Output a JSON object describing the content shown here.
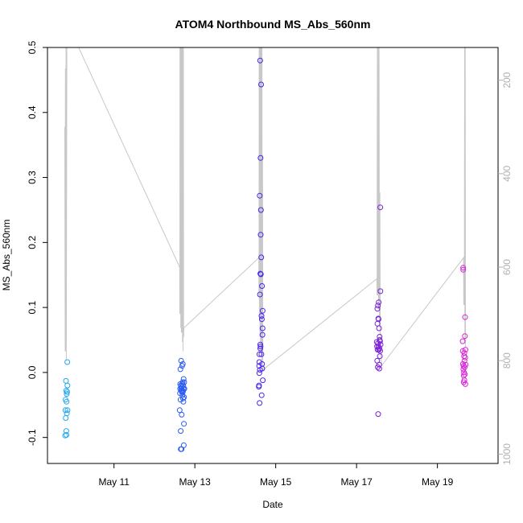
{
  "chart_data": {
    "type": "scatter",
    "title": "ATOM4 Northbound MS_Abs_560nm",
    "xlabel": "Date",
    "ylabel": "MS_Abs_560nm",
    "xlim": [
      "2016-05-09 08:30",
      "2016-05-20 12:00"
    ],
    "ylim": [
      -0.14,
      0.5
    ],
    "x_ticks": [
      "May 11",
      "May 13",
      "May 15",
      "May 17",
      "May 19"
    ],
    "y_ticks": [
      "-0.1",
      "0.0",
      "0.1",
      "0.2",
      "0.3",
      "0.4",
      "0.5"
    ],
    "y2_ticks": [
      "200",
      "400",
      "600",
      "800",
      "1000"
    ],
    "y2lim": [
      1020,
      130
    ],
    "grid": false,
    "point_colors": [
      "#22a7f0",
      "#2b5bf0",
      "#4b22ee",
      "#7a22d6",
      "#d822d8"
    ],
    "line_color": "#c8c8c8",
    "series": [
      {
        "values": [
          {
            "x": "2016-05-09 19:00",
            "y": -0.097
          },
          {
            "x": "2016-05-09 19:10",
            "y": -0.058
          },
          {
            "x": "2016-05-09 19:15",
            "y": -0.042
          },
          {
            "x": "2016-05-09 19:20",
            "y": -0.07
          },
          {
            "x": "2016-05-09 19:30",
            "y": -0.013
          },
          {
            "x": "2016-05-09 19:35",
            "y": -0.028
          },
          {
            "x": "2016-05-09 19:40",
            "y": -0.09
          },
          {
            "x": "2016-05-09 19:45",
            "y": -0.096
          },
          {
            "x": "2016-05-09 19:50",
            "y": -0.045
          },
          {
            "x": "2016-05-09 19:55",
            "y": -0.033
          },
          {
            "x": "2016-05-09 20:00",
            "y": -0.063
          },
          {
            "x": "2016-05-09 20:10",
            "y": -0.03
          },
          {
            "x": "2016-05-09 20:15",
            "y": 0.016
          },
          {
            "x": "2016-05-09 20:20",
            "y": -0.02
          },
          {
            "x": "2016-05-09 20:25",
            "y": -0.058
          }
        ]
      },
      {
        "values": [
          {
            "x": "2016-05-12 15:00",
            "y": -0.058
          },
          {
            "x": "2016-05-12 15:10",
            "y": -0.032
          },
          {
            "x": "2016-05-12 15:15",
            "y": -0.025
          },
          {
            "x": "2016-05-12 15:20",
            "y": -0.018
          },
          {
            "x": "2016-05-12 15:25",
            "y": 0.005
          },
          {
            "x": "2016-05-12 15:30",
            "y": -0.042
          },
          {
            "x": "2016-05-12 15:35",
            "y": -0.09
          },
          {
            "x": "2016-05-12 15:40",
            "y": -0.118
          },
          {
            "x": "2016-05-12 15:45",
            "y": -0.02
          },
          {
            "x": "2016-05-12 15:50",
            "y": 0.018
          },
          {
            "x": "2016-05-12 15:55",
            "y": -0.028
          },
          {
            "x": "2016-05-12 16:00",
            "y": -0.025
          },
          {
            "x": "2016-05-12 16:05",
            "y": -0.118
          },
          {
            "x": "2016-05-12 16:10",
            "y": -0.065
          },
          {
            "x": "2016-05-12 16:15",
            "y": -0.03
          },
          {
            "x": "2016-05-12 16:20",
            "y": -0.022
          },
          {
            "x": "2016-05-12 16:25",
            "y": 0.01
          },
          {
            "x": "2016-05-12 16:30",
            "y": -0.018
          },
          {
            "x": "2016-05-12 16:35",
            "y": -0.035
          },
          {
            "x": "2016-05-12 16:40",
            "y": -0.028
          },
          {
            "x": "2016-05-12 16:45",
            "y": -0.015
          },
          {
            "x": "2016-05-12 16:50",
            "y": 0.013
          },
          {
            "x": "2016-05-12 16:55",
            "y": -0.03
          },
          {
            "x": "2016-05-12 17:00",
            "y": -0.04
          },
          {
            "x": "2016-05-12 17:05",
            "y": -0.02
          },
          {
            "x": "2016-05-12 17:10",
            "y": -0.045
          },
          {
            "x": "2016-05-12 17:15",
            "y": -0.025
          },
          {
            "x": "2016-05-12 17:20",
            "y": -0.01
          },
          {
            "x": "2016-05-12 17:25",
            "y": -0.112
          },
          {
            "x": "2016-05-12 17:30",
            "y": -0.079
          },
          {
            "x": "2016-05-12 17:35",
            "y": -0.038
          },
          {
            "x": "2016-05-12 17:40",
            "y": -0.015
          },
          {
            "x": "2016-05-12 17:45",
            "y": -0.025
          }
        ]
      },
      {
        "values": [
          {
            "x": "2016-05-14 14:00",
            "y": -0.022
          },
          {
            "x": "2016-05-14 14:10",
            "y": 0.01
          },
          {
            "x": "2016-05-14 14:15",
            "y": -0.001
          },
          {
            "x": "2016-05-14 14:20",
            "y": 0.028
          },
          {
            "x": "2016-05-14 14:25",
            "y": -0.047
          },
          {
            "x": "2016-05-14 14:30",
            "y": 0.272
          },
          {
            "x": "2016-05-14 14:35",
            "y": 0.004
          },
          {
            "x": "2016-05-14 14:40",
            "y": 0.12
          },
          {
            "x": "2016-05-14 14:45",
            "y": 0.48
          },
          {
            "x": "2016-05-14 14:50",
            "y": 0.043
          },
          {
            "x": "2016-05-14 14:55",
            "y": 0.152
          },
          {
            "x": "2016-05-14 15:00",
            "y": 0.33
          },
          {
            "x": "2016-05-14 15:05",
            "y": 0.212
          },
          {
            "x": "2016-05-14 15:10",
            "y": 0.151
          },
          {
            "x": "2016-05-14 15:15",
            "y": 0.25
          },
          {
            "x": "2016-05-14 15:20",
            "y": 0.443
          },
          {
            "x": "2016-05-14 15:25",
            "y": 0.177
          },
          {
            "x": "2016-05-14 15:30",
            "y": 0.028
          },
          {
            "x": "2016-05-14 15:35",
            "y": 0.087
          },
          {
            "x": "2016-05-14 15:40",
            "y": -0.035
          },
          {
            "x": "2016-05-14 15:45",
            "y": 0.082
          },
          {
            "x": "2016-05-14 15:50",
            "y": 0.133
          },
          {
            "x": "2016-05-14 15:55",
            "y": 0.013
          },
          {
            "x": "2016-05-14 16:00",
            "y": 0.006
          },
          {
            "x": "2016-05-14 16:05",
            "y": 0.058
          },
          {
            "x": "2016-05-14 16:10",
            "y": 0.068
          },
          {
            "x": "2016-05-14 16:15",
            "y": 0.095
          },
          {
            "x": "2016-05-14 16:20",
            "y": -0.012
          },
          {
            "x": "2016-05-14 14:50",
            "y": 0.037
          },
          {
            "x": "2016-05-14 14:15",
            "y": 0.016
          },
          {
            "x": "2016-05-14 14:05",
            "y": -0.02
          },
          {
            "x": "2016-05-14 15:00",
            "y": 0.04
          }
        ]
      },
      {
        "values": [
          {
            "x": "2016-05-17 12:00",
            "y": 0.047
          },
          {
            "x": "2016-05-17 12:10",
            "y": 0.04
          },
          {
            "x": "2016-05-17 12:15",
            "y": 0.018
          },
          {
            "x": "2016-05-17 12:20",
            "y": 0.098
          },
          {
            "x": "2016-05-17 12:25",
            "y": 0.075
          },
          {
            "x": "2016-05-17 12:30",
            "y": 0.035
          },
          {
            "x": "2016-05-17 12:35",
            "y": 0.008
          },
          {
            "x": "2016-05-17 12:40",
            "y": 0.103
          },
          {
            "x": "2016-05-17 12:45",
            "y": 0.045
          },
          {
            "x": "2016-05-17 12:50",
            "y": -0.064
          },
          {
            "x": "2016-05-17 12:55",
            "y": 0.083
          },
          {
            "x": "2016-05-17 13:00",
            "y": 0.04
          },
          {
            "x": "2016-05-17 13:05",
            "y": 0.082
          },
          {
            "x": "2016-05-17 13:10",
            "y": 0.108
          },
          {
            "x": "2016-05-17 13:15",
            "y": 0.035
          },
          {
            "x": "2016-05-17 13:20",
            "y": 0.068
          },
          {
            "x": "2016-05-17 13:25",
            "y": 0.012
          },
          {
            "x": "2016-05-17 13:30",
            "y": 0.006
          },
          {
            "x": "2016-05-17 13:35",
            "y": 0.037
          },
          {
            "x": "2016-05-17 13:40",
            "y": 0.055
          },
          {
            "x": "2016-05-17 13:45",
            "y": 0.05
          },
          {
            "x": "2016-05-17 13:50",
            "y": 0.025
          },
          {
            "x": "2016-05-17 13:55",
            "y": 0.048
          },
          {
            "x": "2016-05-17 14:00",
            "y": 0.033
          },
          {
            "x": "2016-05-17 14:05",
            "y": 0.254
          },
          {
            "x": "2016-05-17 14:10",
            "y": 0.125
          },
          {
            "x": "2016-05-17 14:15",
            "y": 0.043
          }
        ]
      },
      {
        "values": [
          {
            "x": "2016-05-19 15:00",
            "y": 0.048
          },
          {
            "x": "2016-05-19 15:05",
            "y": 0.033
          },
          {
            "x": "2016-05-19 15:10",
            "y": 0.013
          },
          {
            "x": "2016-05-19 15:15",
            "y": 0.161
          },
          {
            "x": "2016-05-19 15:20",
            "y": 0.158
          },
          {
            "x": "2016-05-19 15:25",
            "y": 0.005
          },
          {
            "x": "2016-05-19 15:30",
            "y": 0.01
          },
          {
            "x": "2016-05-19 15:35",
            "y": -0.015
          },
          {
            "x": "2016-05-19 15:40",
            "y": -0.005
          },
          {
            "x": "2016-05-19 15:45",
            "y": 0.0
          },
          {
            "x": "2016-05-19 15:50",
            "y": 0.025
          },
          {
            "x": "2016-05-19 15:55",
            "y": 0.03
          },
          {
            "x": "2016-05-19 16:00",
            "y": -0.012
          },
          {
            "x": "2016-05-19 16:05",
            "y": 0.018
          },
          {
            "x": "2016-05-19 16:10",
            "y": 0.008
          },
          {
            "x": "2016-05-19 16:15",
            "y": -0.003
          },
          {
            "x": "2016-05-19 16:20",
            "y": 0.056
          },
          {
            "x": "2016-05-19 16:25",
            "y": 0.085
          },
          {
            "x": "2016-05-19 16:30",
            "y": 0.023
          },
          {
            "x": "2016-05-19 16:35",
            "y": -0.018
          },
          {
            "x": "2016-05-19 16:40",
            "y": 0.035
          },
          {
            "x": "2016-05-19 16:45",
            "y": 0.012
          }
        ]
      }
    ],
    "line_series": {
      "y_axis": "right",
      "values": [
        {
          "x": "2016-05-09 18:45",
          "y": 300
        },
        {
          "x": "2016-05-09 19:00",
          "y": 780
        },
        {
          "x": "2016-05-09 19:10",
          "y": 175
        },
        {
          "x": "2016-05-09 19:20",
          "y": 780
        },
        {
          "x": "2016-05-09 19:30",
          "y": 130
        },
        {
          "x": "2016-05-09 19:40",
          "y": 800
        },
        {
          "x": "2016-05-09 20:00",
          "y": 130
        },
        {
          "x": "2016-05-10 03:00",
          "y": 130
        },
        {
          "x": "2016-05-12 15:00",
          "y": 600
        },
        {
          "x": "2016-05-12 15:05",
          "y": 700
        },
        {
          "x": "2016-05-12 15:10",
          "y": 130
        },
        {
          "x": "2016-05-12 15:20",
          "y": 700
        },
        {
          "x": "2016-05-12 15:30",
          "y": 130
        },
        {
          "x": "2016-05-12 15:40",
          "y": 730
        },
        {
          "x": "2016-05-12 15:50",
          "y": 130
        },
        {
          "x": "2016-05-12 16:00",
          "y": 740
        },
        {
          "x": "2016-05-12 16:10",
          "y": 130
        },
        {
          "x": "2016-05-12 16:20",
          "y": 740
        },
        {
          "x": "2016-05-12 16:30",
          "y": 130
        },
        {
          "x": "2016-05-12 16:40",
          "y": 760
        },
        {
          "x": "2016-05-12 16:50",
          "y": 130
        },
        {
          "x": "2016-05-12 17:00",
          "y": 780
        },
        {
          "x": "2016-05-12 17:10",
          "y": 130
        },
        {
          "x": "2016-05-12 17:20",
          "y": 750
        },
        {
          "x": "2016-05-12 17:30",
          "y": 730
        },
        {
          "x": "2016-05-14 14:00",
          "y": 580
        },
        {
          "x": "2016-05-14 14:05",
          "y": 660
        },
        {
          "x": "2016-05-14 14:10",
          "y": 130
        },
        {
          "x": "2016-05-14 14:20",
          "y": 700
        },
        {
          "x": "2016-05-14 14:30",
          "y": 130
        },
        {
          "x": "2016-05-14 14:40",
          "y": 740
        },
        {
          "x": "2016-05-14 14:50",
          "y": 130
        },
        {
          "x": "2016-05-14 15:00",
          "y": 760
        },
        {
          "x": "2016-05-14 15:10",
          "y": 130
        },
        {
          "x": "2016-05-14 15:20",
          "y": 780
        },
        {
          "x": "2016-05-14 15:30",
          "y": 130
        },
        {
          "x": "2016-05-14 15:40",
          "y": 800
        },
        {
          "x": "2016-05-14 15:50",
          "y": 130
        },
        {
          "x": "2016-05-14 16:00",
          "y": 790
        },
        {
          "x": "2016-05-14 16:10",
          "y": 360
        },
        {
          "x": "2016-05-14 16:20",
          "y": 820
        },
        {
          "x": "2016-05-17 12:00",
          "y": 625
        },
        {
          "x": "2016-05-17 12:10",
          "y": 660
        },
        {
          "x": "2016-05-17 12:20",
          "y": 130
        },
        {
          "x": "2016-05-17 12:35",
          "y": 660
        },
        {
          "x": "2016-05-17 12:50",
          "y": 130
        },
        {
          "x": "2016-05-17 13:05",
          "y": 690
        },
        {
          "x": "2016-05-17 13:20",
          "y": 130
        },
        {
          "x": "2016-05-17 13:35",
          "y": 720
        },
        {
          "x": "2016-05-17 13:50",
          "y": 440
        },
        {
          "x": "2016-05-17 14:05",
          "y": 760
        },
        {
          "x": "2016-05-17 14:20",
          "y": 790
        },
        {
          "x": "2016-05-17 15:00",
          "y": 810
        },
        {
          "x": "2016-05-19 15:30",
          "y": 580
        },
        {
          "x": "2016-05-19 15:40",
          "y": 680
        },
        {
          "x": "2016-05-19 16:00",
          "y": 680
        },
        {
          "x": "2016-05-19 16:10",
          "y": 130
        },
        {
          "x": "2016-05-19 16:20",
          "y": 760
        },
        {
          "x": "2016-05-19 16:30",
          "y": 130
        },
        {
          "x": "2016-05-19 16:40",
          "y": 770
        }
      ]
    }
  }
}
